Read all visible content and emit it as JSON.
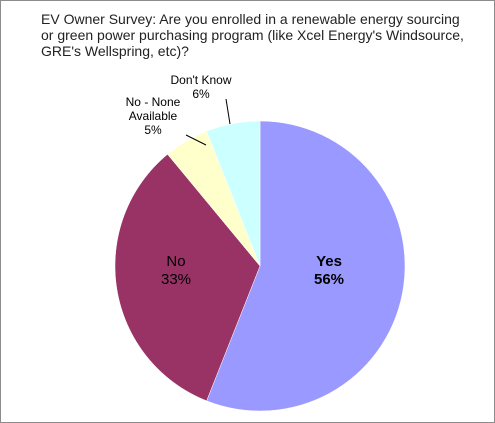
{
  "chart_data": {
    "type": "pie",
    "title": "EV Owner Survey: Are you enrolled in a renewable energy sourcing or green power purchasing program (like Xcel Energy's Windsource, GRE's Wellspring, etc)?",
    "categories": [
      "Yes",
      "No",
      "No - None Available",
      "Don't Know"
    ],
    "values": [
      56,
      33,
      5,
      6
    ],
    "value_labels": [
      "56%",
      "33%",
      "5%",
      "6%"
    ],
    "colors": [
      "#9999ff",
      "#993366",
      "#ffffcc",
      "#ccffff"
    ]
  }
}
